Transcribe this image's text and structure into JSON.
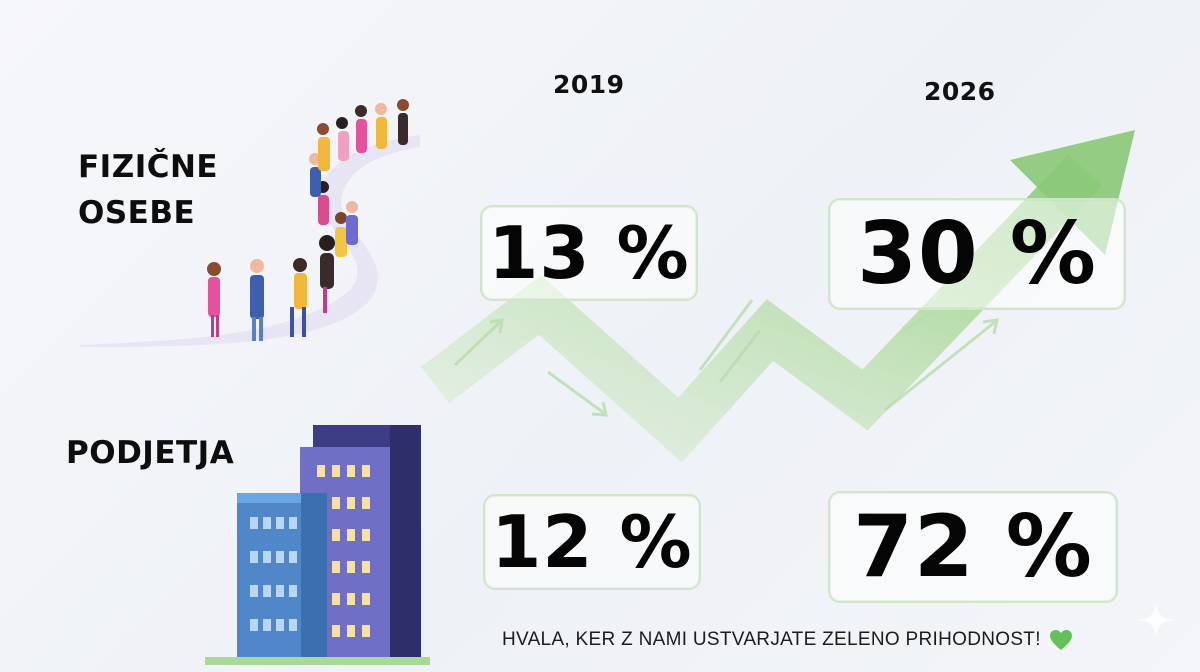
{
  "columns": {
    "year_left": "2019",
    "year_right": "2026"
  },
  "rows": {
    "individuals_label_line1": "FIZIČNE",
    "individuals_label_line2": "OSEBE",
    "companies_label": "PODJETJA"
  },
  "stats": {
    "individuals_2019": "13 %",
    "individuals_2026": "30 %",
    "companies_2019": "12 %",
    "companies_2026": "72 %"
  },
  "footer": {
    "message": "HVALA, KER Z NAMI USTVARJATE ZELENO PRIHODNOST!"
  },
  "icons": {
    "trend": "trend-arrow-icon",
    "heart": "green-heart-icon",
    "people": "people-queue-illustration",
    "buildings": "buildings-illustration",
    "sparkle": "sparkle-icon"
  },
  "colors": {
    "accent_green": "#9fd08b",
    "heart_green": "#62c25a",
    "box_border": "#cfe6c9",
    "building_purple": "#5a5aa8",
    "building_blue": "#4f87c9"
  }
}
